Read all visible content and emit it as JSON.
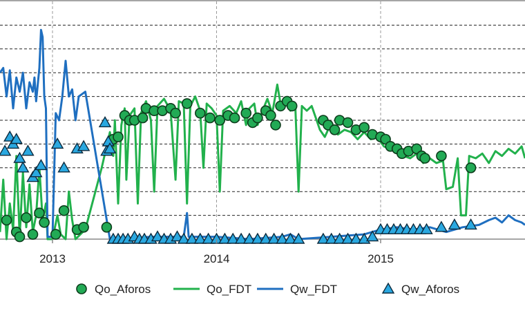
{
  "chart_data": {
    "type": "line",
    "title": "",
    "xlabel": "",
    "ylabel": "",
    "xlim": [
      2012.68,
      2015.88
    ],
    "ylim": [
      0,
      10
    ],
    "grid": true,
    "legend_position": "bottom",
    "x_ticks": [
      {
        "value": 2013,
        "label": "2013"
      },
      {
        "value": 2014,
        "label": "2014"
      },
      {
        "value": 2015,
        "label": "2015"
      }
    ],
    "colors": {
      "Qo_Aforos": "#22aa55",
      "Qo_FDT": "#22b14c",
      "Qw_FDT": "#1f6fc0",
      "Qw_Aforos": "#2aa8e0"
    },
    "series": [
      {
        "name": "Qo_Aforos",
        "style": "markers-circle",
        "points": [
          [
            2012.72,
            0.8
          ],
          [
            2012.78,
            0.3
          ],
          [
            2012.8,
            0.1
          ],
          [
            2012.84,
            0.9
          ],
          [
            2012.88,
            0.2
          ],
          [
            2012.92,
            1.1
          ],
          [
            2012.95,
            0.7
          ],
          [
            2013.02,
            0.2
          ],
          [
            2013.07,
            1.2
          ],
          [
            2013.15,
            0.4
          ],
          [
            2013.19,
            0.5
          ],
          [
            2013.33,
            0.5
          ],
          [
            2013.37,
            4.2
          ],
          [
            2013.4,
            4.3
          ],
          [
            2013.44,
            5.2
          ],
          [
            2013.47,
            5.0
          ],
          [
            2013.5,
            5.0
          ],
          [
            2013.55,
            5.1
          ],
          [
            2013.57,
            5.5
          ],
          [
            2013.62,
            5.4
          ],
          [
            2013.67,
            5.4
          ],
          [
            2013.72,
            5.5
          ],
          [
            2013.75,
            5.3
          ],
          [
            2013.82,
            5.7
          ],
          [
            2013.9,
            5.3
          ],
          [
            2013.96,
            5.1
          ],
          [
            2014.02,
            5.0
          ],
          [
            2014.07,
            5.2
          ],
          [
            2014.11,
            5.1
          ],
          [
            2014.18,
            5.3
          ],
          [
            2014.22,
            4.9
          ],
          [
            2014.25,
            5.1
          ],
          [
            2014.3,
            5.4
          ],
          [
            2014.33,
            5.2
          ],
          [
            2014.36,
            4.8
          ],
          [
            2014.39,
            5.6
          ],
          [
            2014.43,
            5.8
          ],
          [
            2014.46,
            5.6
          ],
          [
            2014.65,
            5.0
          ],
          [
            2014.68,
            4.8
          ],
          [
            2014.72,
            4.6
          ],
          [
            2014.75,
            5.0
          ],
          [
            2014.8,
            4.9
          ],
          [
            2014.85,
            4.6
          ],
          [
            2014.9,
            4.7
          ],
          [
            2014.95,
            4.4
          ],
          [
            2015.0,
            4.3
          ],
          [
            2015.03,
            4.2
          ],
          [
            2015.06,
            3.9
          ],
          [
            2015.1,
            3.8
          ],
          [
            2015.13,
            3.6
          ],
          [
            2015.17,
            3.7
          ],
          [
            2015.22,
            3.8
          ],
          [
            2015.25,
            3.5
          ],
          [
            2015.27,
            3.4
          ],
          [
            2015.37,
            3.5
          ],
          [
            2015.55,
            3.0
          ]
        ]
      },
      {
        "name": "Qo_FDT",
        "style": "line",
        "points": [
          [
            2012.68,
            0.3
          ],
          [
            2012.7,
            2.5
          ],
          [
            2012.72,
            0.0
          ],
          [
            2012.74,
            1.5
          ],
          [
            2012.76,
            0.4
          ],
          [
            2012.78,
            3.5
          ],
          [
            2012.8,
            0.1
          ],
          [
            2012.82,
            2.8
          ],
          [
            2012.84,
            0.5
          ],
          [
            2012.86,
            2.3
          ],
          [
            2012.88,
            0.3
          ],
          [
            2012.9,
            1.0
          ],
          [
            2012.92,
            3.0
          ],
          [
            2012.94,
            0.8
          ],
          [
            2012.96,
            1.5
          ],
          [
            2012.97,
            0.0
          ],
          [
            2013.0,
            0.0
          ],
          [
            2013.03,
            1.0
          ],
          [
            2013.05,
            0.2
          ],
          [
            2013.08,
            0.0
          ],
          [
            2013.1,
            2.0
          ],
          [
            2013.12,
            0.8
          ],
          [
            2013.14,
            0.0
          ],
          [
            2013.17,
            0.2
          ],
          [
            2013.2,
            0.4
          ],
          [
            2013.3,
            3.0
          ],
          [
            2013.35,
            4.5
          ],
          [
            2013.37,
            3.5
          ],
          [
            2013.38,
            5.0
          ],
          [
            2013.4,
            1.5
          ],
          [
            2013.42,
            4.8
          ],
          [
            2013.44,
            5.5
          ],
          [
            2013.45,
            2.5
          ],
          [
            2013.47,
            5.2
          ],
          [
            2013.5,
            5.5
          ],
          [
            2013.52,
            1.5
          ],
          [
            2013.54,
            5.3
          ],
          [
            2013.57,
            5.8
          ],
          [
            2013.6,
            5.0
          ],
          [
            2013.62,
            2.0
          ],
          [
            2013.64,
            5.6
          ],
          [
            2013.68,
            5.9
          ],
          [
            2013.72,
            5.4
          ],
          [
            2013.75,
            2.5
          ],
          [
            2013.77,
            5.8
          ],
          [
            2013.8,
            5.7
          ],
          [
            2013.82,
            1.5
          ],
          [
            2013.84,
            5.6
          ],
          [
            2013.87,
            6.0
          ],
          [
            2013.9,
            5.4
          ],
          [
            2013.92,
            3.0
          ],
          [
            2013.94,
            5.7
          ],
          [
            2013.97,
            5.5
          ],
          [
            2014.0,
            5.2
          ],
          [
            2014.02,
            2.0
          ],
          [
            2014.04,
            5.4
          ],
          [
            2014.08,
            5.6
          ],
          [
            2014.12,
            5.3
          ],
          [
            2014.15,
            5.8
          ],
          [
            2014.18,
            4.8
          ],
          [
            2014.2,
            5.5
          ],
          [
            2014.23,
            5.7
          ],
          [
            2014.25,
            4.8
          ],
          [
            2014.28,
            5.4
          ],
          [
            2014.31,
            5.9
          ],
          [
            2014.34,
            5.3
          ],
          [
            2014.37,
            6.5
          ],
          [
            2014.39,
            5.7
          ],
          [
            2014.42,
            5.8
          ],
          [
            2014.45,
            5.4
          ],
          [
            2014.48,
            5.6
          ],
          [
            2014.5,
            2.0
          ],
          [
            2014.52,
            5.6
          ],
          [
            2014.55,
            5.4
          ],
          [
            2014.58,
            5.6
          ],
          [
            2014.6,
            5.2
          ],
          [
            2014.63,
            4.6
          ],
          [
            2014.66,
            4.3
          ],
          [
            2014.7,
            4.9
          ],
          [
            2014.74,
            4.4
          ],
          [
            2014.78,
            4.6
          ],
          [
            2014.82,
            4.5
          ],
          [
            2014.86,
            4.2
          ],
          [
            2014.9,
            4.5
          ],
          [
            2014.94,
            4.2
          ],
          [
            2014.98,
            4.3
          ],
          [
            2015.02,
            3.9
          ],
          [
            2015.06,
            3.8
          ],
          [
            2015.1,
            3.6
          ],
          [
            2015.14,
            3.5
          ],
          [
            2015.18,
            3.4
          ],
          [
            2015.22,
            3.6
          ],
          [
            2015.26,
            3.2
          ],
          [
            2015.3,
            3.4
          ],
          [
            2015.34,
            3.2
          ],
          [
            2015.38,
            3.3
          ],
          [
            2015.4,
            2.1
          ],
          [
            2015.44,
            2.2
          ],
          [
            2015.47,
            3.4
          ],
          [
            2015.49,
            1.0
          ],
          [
            2015.52,
            1.0
          ],
          [
            2015.54,
            3.5
          ],
          [
            2015.58,
            3.4
          ],
          [
            2015.62,
            3.6
          ],
          [
            2015.66,
            3.2
          ],
          [
            2015.7,
            3.7
          ],
          [
            2015.74,
            3.5
          ],
          [
            2015.78,
            3.8
          ],
          [
            2015.82,
            3.6
          ],
          [
            2015.86,
            3.9
          ],
          [
            2015.88,
            3.4
          ]
        ]
      },
      {
        "name": "Qw_FDT",
        "style": "line",
        "points": [
          [
            2012.68,
            7.0
          ],
          [
            2012.7,
            7.2
          ],
          [
            2012.72,
            6.0
          ],
          [
            2012.74,
            7.1
          ],
          [
            2012.76,
            5.5
          ],
          [
            2012.78,
            6.8
          ],
          [
            2012.8,
            6.2
          ],
          [
            2012.82,
            7.0
          ],
          [
            2012.84,
            5.5
          ],
          [
            2012.86,
            6.6
          ],
          [
            2012.88,
            6.2
          ],
          [
            2012.89,
            6.8
          ],
          [
            2012.9,
            5.8
          ],
          [
            2012.92,
            7.2
          ],
          [
            2012.93,
            8.8
          ],
          [
            2012.94,
            8.5
          ],
          [
            2012.95,
            6.0
          ],
          [
            2012.96,
            5.5
          ],
          [
            2012.97,
            0.1
          ],
          [
            2013.0,
            0.1
          ],
          [
            2013.02,
            5.3
          ],
          [
            2013.04,
            5.0
          ],
          [
            2013.06,
            6.0
          ],
          [
            2013.08,
            7.5
          ],
          [
            2013.1,
            6.0
          ],
          [
            2013.12,
            6.3
          ],
          [
            2013.14,
            5.0
          ],
          [
            2013.16,
            6.0
          ],
          [
            2013.18,
            6.1
          ],
          [
            2013.2,
            6.2
          ],
          [
            2013.35,
            0.0
          ],
          [
            2013.4,
            0.0
          ],
          [
            2013.6,
            0.1
          ],
          [
            2013.8,
            0.1
          ],
          [
            2013.82,
            1.1
          ],
          [
            2013.83,
            0.1
          ],
          [
            2014.0,
            0.1
          ],
          [
            2014.2,
            0.0
          ],
          [
            2014.4,
            0.1
          ],
          [
            2014.45,
            0.2
          ],
          [
            2014.5,
            0.0
          ],
          [
            2014.7,
            0.1
          ],
          [
            2014.9,
            0.2
          ],
          [
            2015.0,
            0.4
          ],
          [
            2015.1,
            0.5
          ],
          [
            2015.2,
            0.4
          ],
          [
            2015.3,
            0.5
          ],
          [
            2015.4,
            0.3
          ],
          [
            2015.5,
            0.5
          ],
          [
            2015.6,
            0.6
          ],
          [
            2015.66,
            0.8
          ],
          [
            2015.7,
            0.9
          ],
          [
            2015.74,
            0.7
          ],
          [
            2015.78,
            1.0
          ],
          [
            2015.82,
            0.8
          ],
          [
            2015.86,
            0.7
          ],
          [
            2015.88,
            0.6
          ]
        ]
      },
      {
        "name": "Qw_Aforos",
        "style": "markers-triangle",
        "points": [
          [
            2012.71,
            3.7
          ],
          [
            2012.74,
            4.3
          ],
          [
            2012.76,
            4.0
          ],
          [
            2012.78,
            4.2
          ],
          [
            2012.8,
            3.4
          ],
          [
            2012.82,
            3.0
          ],
          [
            2012.85,
            3.7
          ],
          [
            2012.88,
            2.6
          ],
          [
            2012.9,
            2.8
          ],
          [
            2012.93,
            3.1
          ],
          [
            2013.03,
            4.0
          ],
          [
            2013.07,
            3.0
          ],
          [
            2013.15,
            3.8
          ],
          [
            2013.19,
            3.9
          ],
          [
            2013.32,
            4.9
          ],
          [
            2013.33,
            3.7
          ],
          [
            2013.34,
            4.1
          ],
          [
            2013.35,
            3.8
          ],
          [
            2013.37,
            0.0
          ],
          [
            2013.4,
            0.0
          ],
          [
            2013.43,
            0.0
          ],
          [
            2013.46,
            0.0
          ],
          [
            2013.5,
            0.1
          ],
          [
            2013.53,
            0.0
          ],
          [
            2013.56,
            0.0
          ],
          [
            2013.6,
            0.0
          ],
          [
            2013.64,
            0.1
          ],
          [
            2013.68,
            0.0
          ],
          [
            2013.72,
            0.0
          ],
          [
            2013.76,
            0.1
          ],
          [
            2013.8,
            0.0
          ],
          [
            2013.85,
            0.0
          ],
          [
            2013.9,
            0.0
          ],
          [
            2013.95,
            0.0
          ],
          [
            2014.0,
            0.0
          ],
          [
            2014.05,
            0.0
          ],
          [
            2014.1,
            0.0
          ],
          [
            2014.15,
            0.0
          ],
          [
            2014.2,
            0.0
          ],
          [
            2014.25,
            0.0
          ],
          [
            2014.3,
            0.0
          ],
          [
            2014.35,
            0.0
          ],
          [
            2014.4,
            0.0
          ],
          [
            2014.45,
            0.0
          ],
          [
            2014.5,
            0.0
          ],
          [
            2014.65,
            0.0
          ],
          [
            2014.7,
            0.0
          ],
          [
            2014.75,
            0.0
          ],
          [
            2014.8,
            0.0
          ],
          [
            2014.85,
            0.0
          ],
          [
            2014.9,
            0.0
          ],
          [
            2014.95,
            0.1
          ],
          [
            2015.0,
            0.4
          ],
          [
            2015.04,
            0.4
          ],
          [
            2015.08,
            0.4
          ],
          [
            2015.12,
            0.4
          ],
          [
            2015.16,
            0.4
          ],
          [
            2015.2,
            0.4
          ],
          [
            2015.24,
            0.4
          ],
          [
            2015.28,
            0.4
          ],
          [
            2015.37,
            0.5
          ],
          [
            2015.45,
            0.6
          ],
          [
            2015.55,
            0.6
          ]
        ]
      }
    ]
  },
  "legend": [
    {
      "key": "Qo_Aforos",
      "label": "Qo_Aforos",
      "symbol": "circle"
    },
    {
      "key": "Qo_FDT",
      "label": "Qo_FDT",
      "symbol": "line"
    },
    {
      "key": "Qw_FDT",
      "label": "Qw_FDT",
      "symbol": "line"
    },
    {
      "key": "Qw_Aforos",
      "label": "Qw_Aforos",
      "symbol": "triangle"
    }
  ]
}
